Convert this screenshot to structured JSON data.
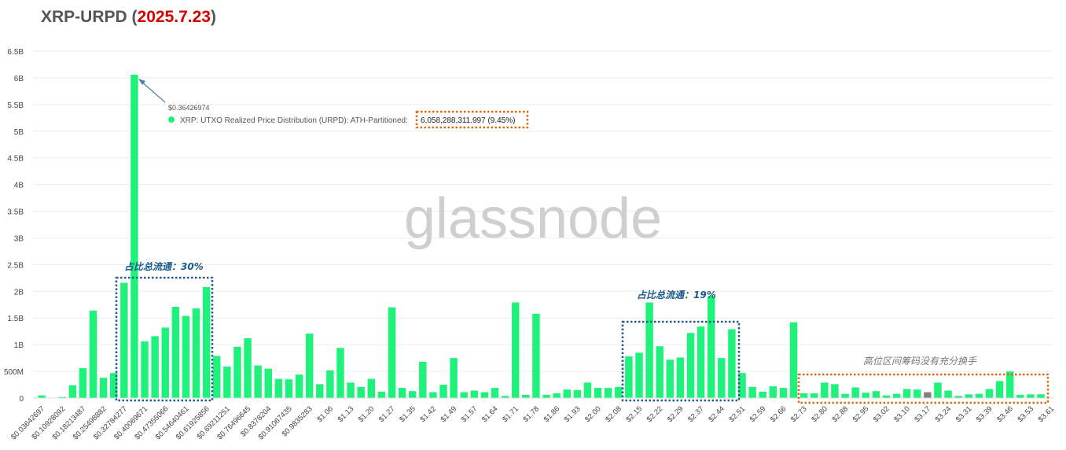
{
  "title": {
    "asset": "XRP-URPD",
    "open_paren": "(",
    "date": "2025.7.23",
    "close_paren": ")"
  },
  "watermark": "glassnode",
  "colors": {
    "bar": "#1ef27b",
    "highlight_bar": "#808080",
    "title_date": "#d40000",
    "annotation_blue": "#1a5a8a",
    "box_blue": "#1d5c8e",
    "box_orange": "#e06a10"
  },
  "tooltip": {
    "price_label": "$0.36426974",
    "series_label": "XRP: UTXO Realized Price Distribution (URPD): ATH-Partitioned:",
    "value_label": "6,058,288,311.997 (9.45%)"
  },
  "annotations": {
    "box1_text": "占比总流通：30%",
    "box2_text": "占比总流通：19%",
    "box3_text": "高位区间筹码没有充分换手"
  },
  "chart_data": {
    "type": "bar",
    "ylim": [
      0,
      6500000000
    ],
    "y_ticks": [
      {
        "value": 0,
        "label": "0"
      },
      {
        "value": 500000000,
        "label": "500M"
      },
      {
        "value": 1000000000,
        "label": "1B"
      },
      {
        "value": 1500000000,
        "label": "1.5B"
      },
      {
        "value": 2000000000,
        "label": "2B"
      },
      {
        "value": 2500000000,
        "label": "2.5B"
      },
      {
        "value": 3000000000,
        "label": "3B"
      },
      {
        "value": 3500000000,
        "label": "3.5B"
      },
      {
        "value": 4000000000,
        "label": "4B"
      },
      {
        "value": 4500000000,
        "label": "4.5B"
      },
      {
        "value": 5000000000,
        "label": "5B"
      },
      {
        "value": 5500000000,
        "label": "5.5B"
      },
      {
        "value": 6000000000,
        "label": "6B"
      },
      {
        "value": 6500000000,
        "label": "6.5B"
      }
    ],
    "x_tick_labels": [
      {
        "index": 0,
        "label": "$0.03642697"
      },
      {
        "index": 2,
        "label": "$0.10928092"
      },
      {
        "index": 4,
        "label": "$0.18213487"
      },
      {
        "index": 6,
        "label": "$0.25498882"
      },
      {
        "index": 8,
        "label": "$0.32784277"
      },
      {
        "index": 10,
        "label": "$0.40069671"
      },
      {
        "index": 12,
        "label": "$0.47355066"
      },
      {
        "index": 14,
        "label": "$0.54640461"
      },
      {
        "index": 16,
        "label": "$0.61925856"
      },
      {
        "index": 18,
        "label": "$0.69211251"
      },
      {
        "index": 20,
        "label": "$0.76496645"
      },
      {
        "index": 22,
        "label": "$0.8378204"
      },
      {
        "index": 24,
        "label": "$0.91067435"
      },
      {
        "index": 26,
        "label": "$0.9835283"
      },
      {
        "index": 28,
        "label": "$1.06"
      },
      {
        "index": 30,
        "label": "$1.13"
      },
      {
        "index": 32,
        "label": "$1.20"
      },
      {
        "index": 34,
        "label": "$1.27"
      },
      {
        "index": 36,
        "label": "$1.35"
      },
      {
        "index": 38,
        "label": "$1.42"
      },
      {
        "index": 40,
        "label": "$1.49"
      },
      {
        "index": 42,
        "label": "$1.57"
      },
      {
        "index": 44,
        "label": "$1.64"
      },
      {
        "index": 46,
        "label": "$1.71"
      },
      {
        "index": 48,
        "label": "$1.78"
      },
      {
        "index": 50,
        "label": "$1.86"
      },
      {
        "index": 52,
        "label": "$1.93"
      },
      {
        "index": 54,
        "label": "$2.00"
      },
      {
        "index": 56,
        "label": "$2.08"
      },
      {
        "index": 58,
        "label": "$2.15"
      },
      {
        "index": 60,
        "label": "$2.22"
      },
      {
        "index": 62,
        "label": "$2.29"
      },
      {
        "index": 64,
        "label": "$2.37"
      },
      {
        "index": 66,
        "label": "$2.44"
      },
      {
        "index": 68,
        "label": "$2.51"
      },
      {
        "index": 70,
        "label": "$2.59"
      },
      {
        "index": 72,
        "label": "$2.66"
      },
      {
        "index": 74,
        "label": "$2.73"
      },
      {
        "index": 76,
        "label": "$2.80"
      },
      {
        "index": 78,
        "label": "$2.88"
      },
      {
        "index": 80,
        "label": "$2.95"
      },
      {
        "index": 82,
        "label": "$3.02"
      },
      {
        "index": 84,
        "label": "$3.10"
      },
      {
        "index": 86,
        "label": "$3.17"
      },
      {
        "index": 88,
        "label": "$3.24"
      },
      {
        "index": 90,
        "label": "$3.31"
      },
      {
        "index": 92,
        "label": "$3.39"
      },
      {
        "index": 94,
        "label": "$3.46"
      },
      {
        "index": 96,
        "label": "$3.53"
      },
      {
        "index": 98,
        "label": "$3.61"
      }
    ],
    "values": [
      50000000,
      5000000,
      20000000,
      240000000,
      560000000,
      1640000000,
      380000000,
      470000000,
      2160000000,
      6058288312,
      1060000000,
      1160000000,
      1320000000,
      1710000000,
      1540000000,
      1680000000,
      2080000000,
      790000000,
      590000000,
      960000000,
      1120000000,
      610000000,
      550000000,
      360000000,
      350000000,
      440000000,
      1210000000,
      260000000,
      520000000,
      940000000,
      290000000,
      210000000,
      360000000,
      120000000,
      1700000000,
      190000000,
      130000000,
      680000000,
      110000000,
      250000000,
      750000000,
      110000000,
      140000000,
      110000000,
      190000000,
      40000000,
      1790000000,
      60000000,
      1580000000,
      60000000,
      90000000,
      160000000,
      150000000,
      290000000,
      190000000,
      190000000,
      210000000,
      780000000,
      850000000,
      1790000000,
      970000000,
      720000000,
      760000000,
      1220000000,
      1340000000,
      1910000000,
      750000000,
      1290000000,
      470000000,
      210000000,
      120000000,
      220000000,
      190000000,
      1420000000,
      90000000,
      90000000,
      290000000,
      260000000,
      80000000,
      200000000,
      100000000,
      130000000,
      50000000,
      80000000,
      170000000,
      160000000,
      110000000,
      290000000,
      140000000,
      40000000,
      70000000,
      80000000,
      170000000,
      320000000,
      500000000,
      60000000,
      70000000,
      70000000
    ],
    "highlight_index": 86,
    "tooltip_index": 9,
    "grid": true,
    "legend": "none"
  }
}
